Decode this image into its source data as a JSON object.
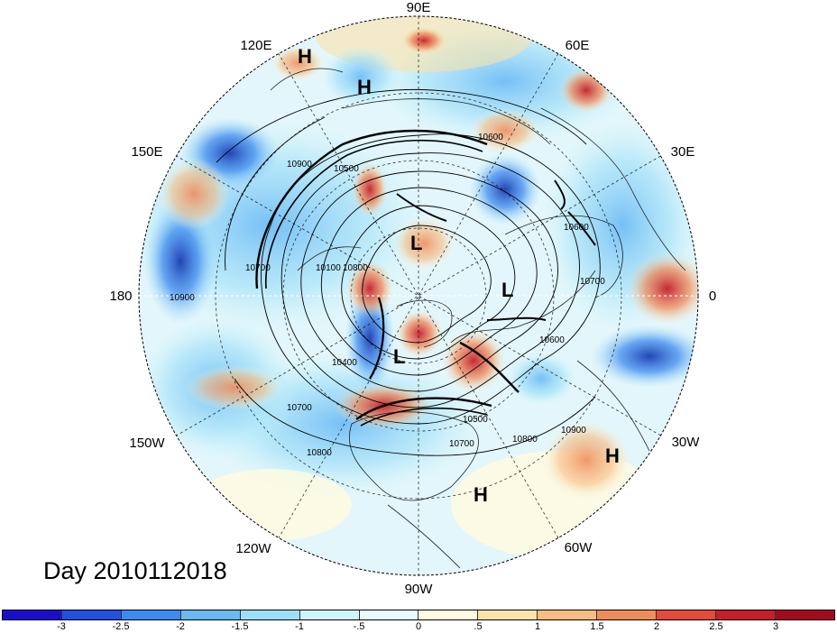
{
  "map": {
    "longitude_labels": [
      "90E",
      "60E",
      "30E",
      "0",
      "30W",
      "60W",
      "90W",
      "120W",
      "150W",
      "180",
      "150E",
      "120E"
    ],
    "pressure_centers": [
      {
        "label": "H",
        "name": "high-120e"
      },
      {
        "label": "H",
        "name": "high-100e"
      },
      {
        "label": "L",
        "name": "low-pole"
      },
      {
        "label": "L",
        "name": "low-europe"
      },
      {
        "label": "L",
        "name": "low-hudson"
      },
      {
        "label": "H",
        "name": "high-atlantic"
      },
      {
        "label": "H",
        "name": "high-caribbean"
      }
    ],
    "contour_labels": [
      "10900",
      "10500",
      "10100",
      "10700",
      "10900",
      "10800",
      "10400",
      "10700",
      "10800",
      "10500",
      "10700",
      "10800",
      "10900",
      "10600",
      "10700",
      "10600",
      "10600"
    ],
    "colors": {
      "ocean_blue": "#2c74d8",
      "deep_blue": "#1a3cb0",
      "red": "#d62828",
      "dark_red": "#a40a1e"
    }
  },
  "day_label": "Day 2010112018",
  "colorbar": {
    "colors": [
      "#1a0ecc",
      "#2350e0",
      "#3d8bf0",
      "#6ab9f5",
      "#9ddff8",
      "#cdf5fb",
      "#e8fcfd",
      "#fffbe0",
      "#fbe3aa",
      "#f7bd82",
      "#f08c5c",
      "#e54a3a",
      "#c61e2c",
      "#a40a1e"
    ],
    "labels": [
      "-3",
      "-2.5",
      "-2",
      "-1.5",
      "-1",
      "-.5",
      "0",
      ".5",
      "1",
      "1.5",
      "2",
      "2.5",
      "3"
    ]
  }
}
